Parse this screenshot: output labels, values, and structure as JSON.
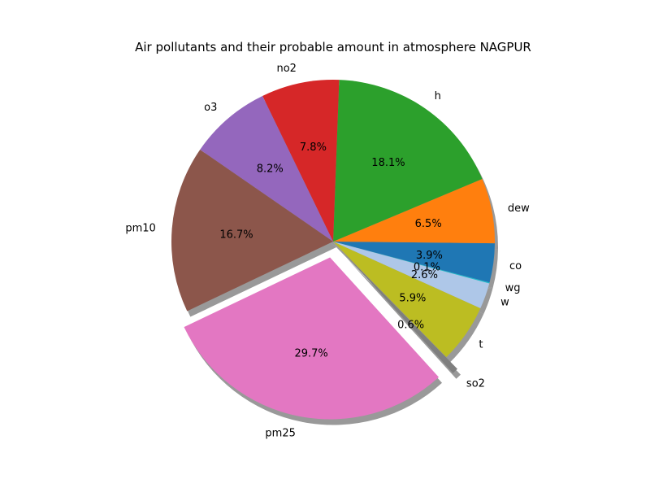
{
  "chart_data": {
    "type": "pie",
    "title": "Air pollutants and their probable amount in atmosphere NAGPUR",
    "start_angle_deg": -15,
    "direction": "counterclockwise",
    "shadow": true,
    "exploded": [
      "pm25",
      "so2"
    ],
    "slices": [
      {
        "label": "wg",
        "value": 0.1,
        "pct_label": "0.1%",
        "color": "#17becf"
      },
      {
        "label": "co",
        "value": 3.9,
        "pct_label": "3.9%",
        "color": "#1f77b4"
      },
      {
        "label": "dew",
        "value": 6.5,
        "pct_label": "6.5%",
        "color": "#ff7f0e"
      },
      {
        "label": "h",
        "value": 18.1,
        "pct_label": "18.1%",
        "color": "#2ca02c"
      },
      {
        "label": "no2",
        "value": 7.8,
        "pct_label": "7.8%",
        "color": "#d62728"
      },
      {
        "label": "o3",
        "value": 8.2,
        "pct_label": "8.2%",
        "color": "#9467bd"
      },
      {
        "label": "pm10",
        "value": 16.7,
        "pct_label": "16.7%",
        "color": "#8c564b"
      },
      {
        "label": "pm25",
        "value": 29.7,
        "pct_label": "29.7%",
        "color": "#e377c2"
      },
      {
        "label": "so2",
        "value": 0.6,
        "pct_label": "0.6%",
        "color": "#7f7f7f"
      },
      {
        "label": "t",
        "value": 5.9,
        "pct_label": "5.9%",
        "color": "#bcbd22"
      },
      {
        "label": "w",
        "value": 2.6,
        "pct_label": "2.6%",
        "color": "#aec7e8"
      }
    ]
  }
}
